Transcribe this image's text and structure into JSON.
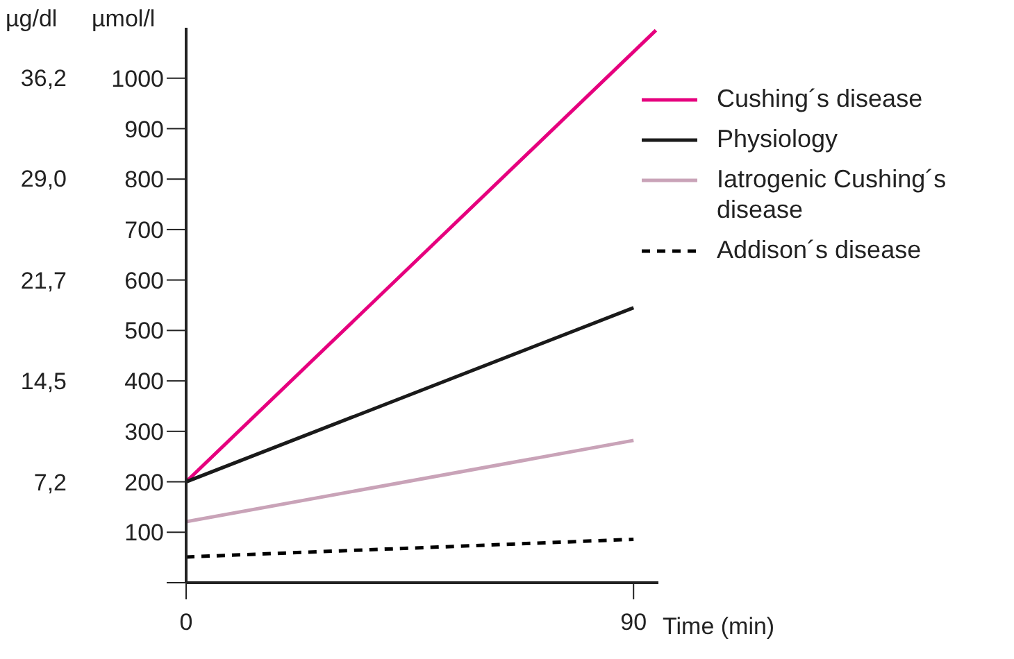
{
  "chart_data": {
    "type": "line",
    "xlabel": "Time (min)",
    "ylabel": "µmol/l",
    "y2label": "µg/dl",
    "xlim": [
      0,
      95
    ],
    "xticks": [
      0,
      90
    ],
    "ylim": [
      0,
      1100
    ],
    "yticks": [
      {
        "value": 0,
        "label": null
      },
      100,
      200,
      300,
      400,
      500,
      600,
      700,
      800,
      900,
      1000
    ],
    "y2lim": [
      0,
      39.8
    ],
    "y2ticks": [
      {
        "value": 7.2,
        "label": "7,2"
      },
      {
        "value": 14.5,
        "label": "14,5"
      },
      {
        "value": 21.7,
        "label": "21,7"
      },
      {
        "value": 29,
        "label": "29,0"
      },
      {
        "value": 36.2,
        "label": "36,2"
      }
    ],
    "legend": "top right",
    "marker": "none",
    "series": [
      {
        "name": "Cushing´s disease",
        "color": "#e6007e",
        "x": [
          0,
          94.5
        ],
        "values": [
          200,
          1095
        ]
      },
      {
        "name": "Physiology",
        "color": "#1a1a1a",
        "x": [
          0,
          90
        ],
        "values": [
          200,
          545
        ]
      },
      {
        "name": "Iatrogenic Cushing´s disease",
        "color": "#c9a3b8",
        "x": [
          0,
          90
        ],
        "values": [
          121,
          282
        ]
      },
      {
        "name": "Addison´s disease",
        "color": "#000000",
        "x": [
          0,
          90
        ],
        "values": [
          51,
          86
        ],
        "line_style": "dashed"
      }
    ]
  }
}
